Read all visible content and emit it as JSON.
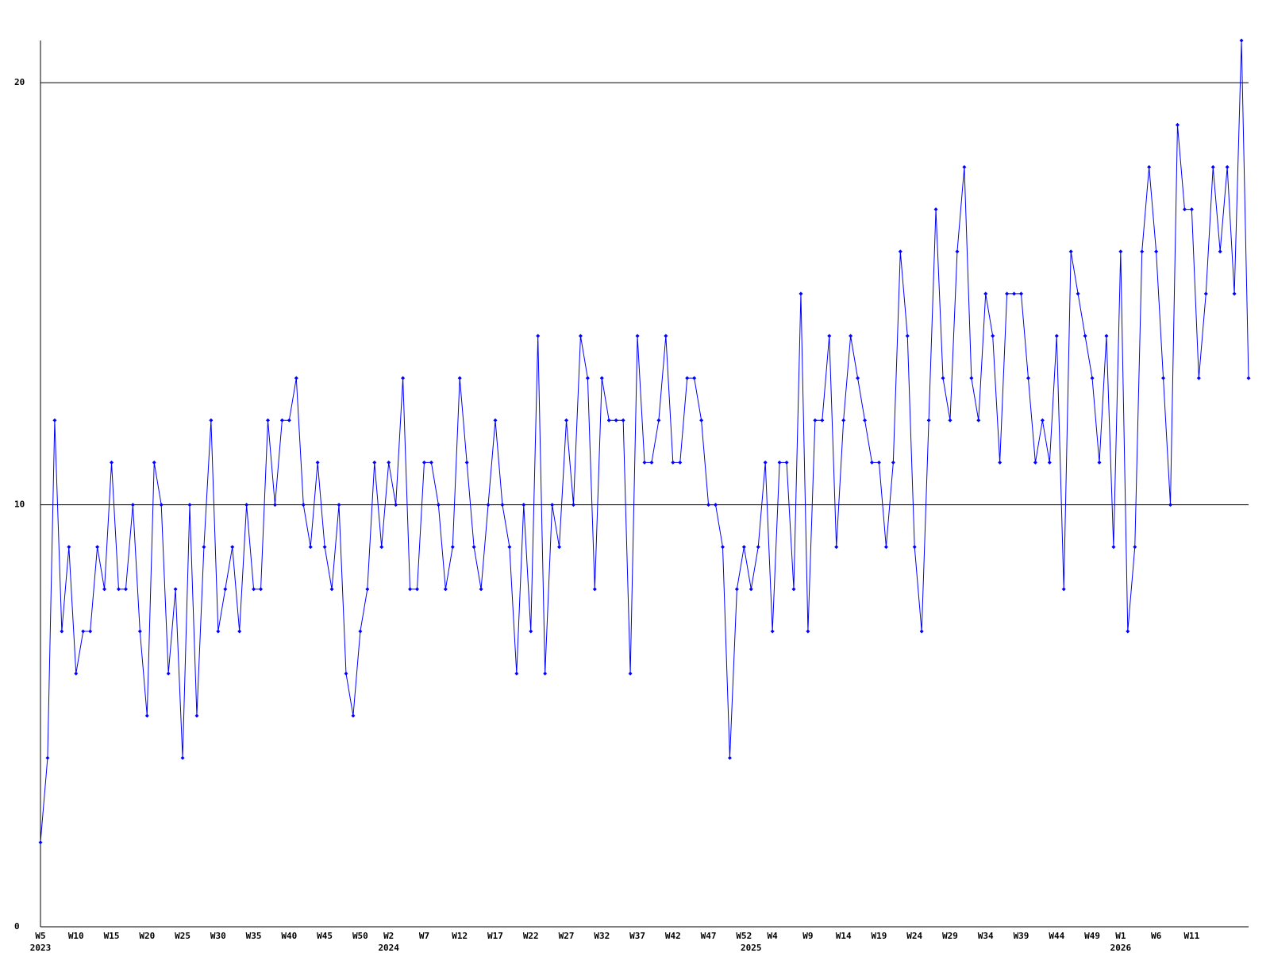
{
  "chart_data": {
    "type": "line",
    "categories": [
      "W5",
      null,
      null,
      null,
      null,
      "W10",
      null,
      null,
      null,
      null,
      "W15",
      null,
      null,
      null,
      null,
      "W20",
      null,
      null,
      null,
      null,
      "W25",
      null,
      null,
      null,
      null,
      "W30",
      null,
      null,
      null,
      null,
      "W35",
      null,
      null,
      null,
      null,
      "W40",
      null,
      null,
      null,
      null,
      "W45",
      null,
      null,
      null,
      null,
      "W50",
      null,
      null,
      null,
      "W2",
      null,
      null,
      null,
      null,
      "W7",
      null,
      null,
      null,
      null,
      "W12",
      null,
      null,
      null,
      null,
      "W17",
      null,
      null,
      null,
      null,
      "W22",
      null,
      null,
      null,
      null,
      "W27",
      null,
      null,
      null,
      null,
      "W32",
      null,
      null,
      null,
      null,
      "W37",
      null,
      null,
      null,
      null,
      "W42",
      null,
      null,
      null,
      null,
      "W47",
      null,
      null,
      null,
      null,
      "W52",
      null,
      null,
      null,
      "W4",
      null,
      null,
      null,
      null,
      "W9",
      null,
      null,
      null,
      null,
      "W14",
      null,
      null,
      null,
      null,
      "W19",
      null,
      null,
      null,
      null,
      "W24",
      null,
      null,
      null,
      null,
      "W29",
      null,
      null,
      null,
      null,
      "W34",
      null,
      null,
      null,
      null,
      "W39",
      null,
      null,
      null,
      null,
      "W44",
      null,
      null,
      null,
      null,
      "W49",
      null,
      null,
      null,
      "W1",
      null,
      null,
      null,
      null,
      "W6",
      null,
      null,
      null,
      null,
      "W11",
      null,
      null,
      null,
      null,
      null,
      null,
      null,
      null
    ],
    "year_labels": [
      {
        "category": 0,
        "label": "2023"
      },
      {
        "category": 49,
        "label": "2024"
      },
      {
        "category": 100,
        "label": "2025"
      },
      {
        "category": 152,
        "label": "2026"
      }
    ],
    "series": [
      {
        "color": "#0000ff",
        "values": [
          2,
          4,
          12,
          7,
          9,
          6,
          7,
          7,
          9,
          8,
          11,
          8,
          8,
          10,
          7,
          5,
          11,
          10,
          6,
          8,
          4,
          10,
          5,
          9,
          12,
          7,
          8,
          9,
          7,
          10,
          8,
          8,
          12,
          10,
          12,
          12,
          13,
          10,
          9,
          11,
          9,
          8,
          10,
          6,
          5,
          7,
          8,
          11,
          9,
          11,
          10,
          13,
          8,
          8,
          11,
          11,
          10,
          8,
          9,
          13,
          11,
          9,
          8,
          10,
          12,
          10,
          9,
          6,
          10,
          7,
          14,
          6,
          10,
          9,
          12,
          10,
          14,
          13,
          8,
          13,
          12,
          12,
          12,
          6,
          14,
          11,
          11,
          12,
          14,
          11,
          11,
          13,
          13,
          12,
          10,
          10,
          9,
          4,
          8,
          9,
          8,
          9,
          11,
          7,
          11,
          11,
          8,
          15,
          7,
          12,
          12,
          14,
          9,
          12,
          14,
          13,
          12,
          11,
          11,
          9,
          11,
          16,
          14,
          9,
          7,
          12,
          17,
          13,
          12,
          16,
          18,
          13,
          12,
          15,
          14,
          11,
          15,
          15,
          15,
          13,
          11,
          12,
          11,
          14,
          8,
          16,
          15,
          14,
          13,
          11,
          14,
          9,
          16,
          7,
          9,
          16,
          18,
          16,
          13,
          10,
          19,
          17,
          17,
          13,
          15,
          18,
          16,
          18,
          15,
          21,
          13
        ]
      }
    ],
    "ylim": [
      0,
      21
    ],
    "yticks": [
      0,
      10,
      20
    ],
    "grid": true
  }
}
